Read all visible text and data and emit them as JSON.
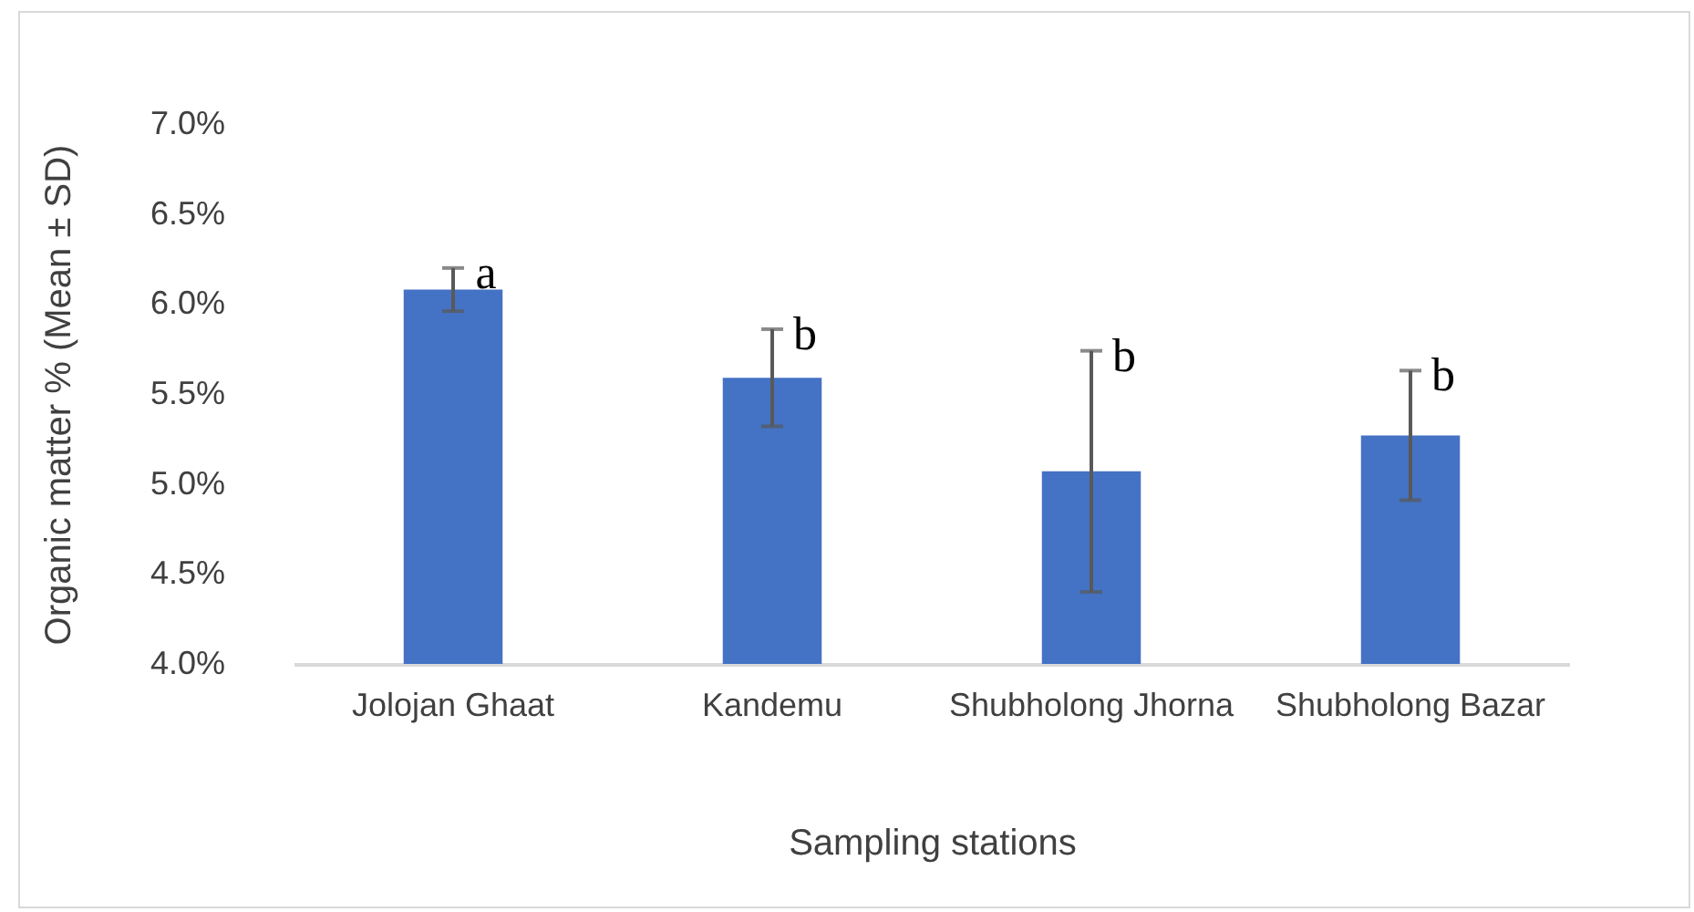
{
  "chart_data": {
    "type": "bar",
    "xlabel": "Sampling stations",
    "ylabel": "Organic matter % (Mean ± SD)",
    "categories": [
      "Jolojan Ghaat",
      "Kandemu",
      "Shubholong Jhorna",
      "Shubholong Bazar"
    ],
    "values": [
      6.08,
      5.59,
      5.07,
      5.27
    ],
    "errors": [
      0.12,
      0.27,
      0.67,
      0.36
    ],
    "color": "#4472c4",
    "ylim": [
      4,
      7
    ],
    "yticks": [
      {
        "value": 4,
        "label": "4.0%"
      },
      {
        "value": 4.5,
        "label": "4.5%"
      },
      {
        "value": 5,
        "label": "5.0%"
      },
      {
        "value": 5.5,
        "label": "5.5%"
      },
      {
        "value": 6,
        "label": "6.0%"
      },
      {
        "value": 6.5,
        "label": "6.5%"
      },
      {
        "value": 7,
        "label": "7.0%"
      }
    ],
    "grid": false,
    "annotations": [
      "a",
      "b",
      "b",
      "b"
    ]
  }
}
